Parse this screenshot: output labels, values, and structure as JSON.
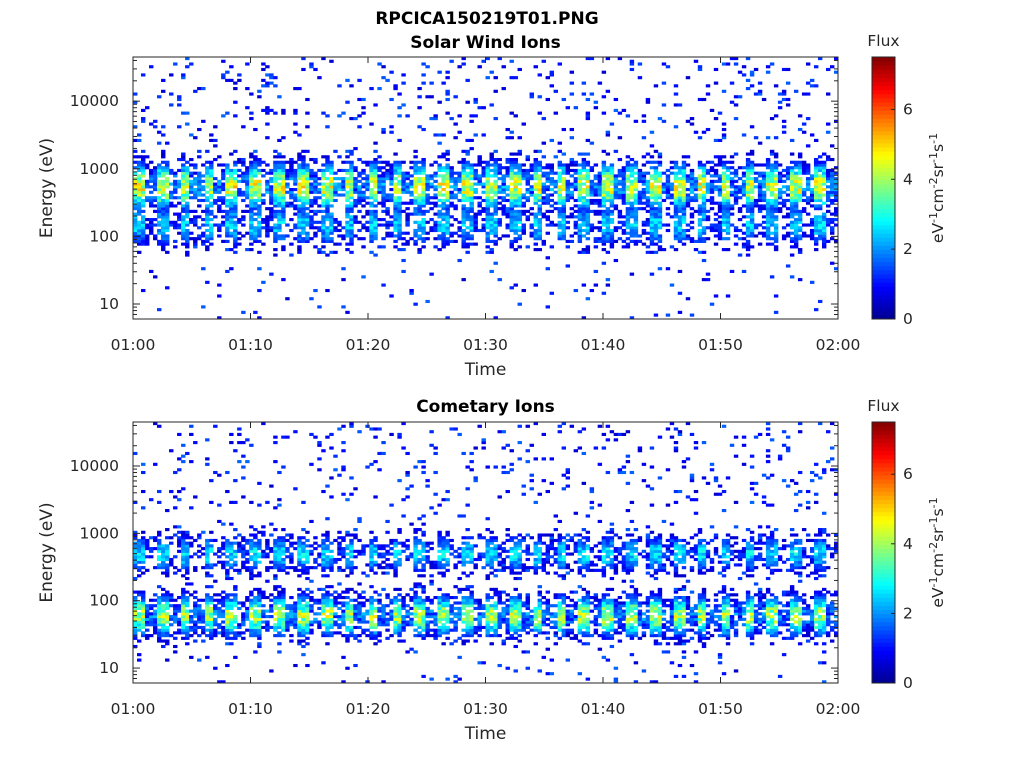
{
  "figure_title": "RPCICA150219T01.PNG",
  "colors": {
    "colormap": [
      "#00008f",
      "#0000ff",
      "#0080ff",
      "#00ffff",
      "#80ff80",
      "#ffff00",
      "#ff8000",
      "#ff0000",
      "#800000"
    ],
    "axis": "#262626"
  },
  "chart_data": [
    {
      "type": "heatmap",
      "title": "Solar Wind Ions",
      "xlabel": "Time",
      "ylabel": "Energy (eV)",
      "xlim": [
        "01:00",
        "02:00"
      ],
      "x_ticks": [
        "01:00",
        "01:10",
        "01:20",
        "01:30",
        "01:40",
        "01:50",
        "02:00"
      ],
      "ylim": [
        6,
        45000
      ],
      "y_scale": "log",
      "y_ticks": [
        10,
        100,
        1000,
        10000
      ],
      "y_tick_labels": [
        "10",
        "100",
        "1000",
        "10000"
      ],
      "colorbar": {
        "title": "Flux",
        "label": "eV-1cm-2sr-1s-1",
        "range": [
          0,
          7.5
        ],
        "ticks": [
          0,
          2,
          4,
          6
        ],
        "tick_labels": [
          "0",
          "2",
          "4",
          "6"
        ]
      },
      "profile": {
        "bands": [
          {
            "center_eV": 550,
            "peak": 4.3,
            "width": 0.32
          },
          {
            "center_eV": 150,
            "peak": 2.4,
            "width": 0.3
          }
        ],
        "active_cadence_min": 2,
        "seed": 17
      }
    },
    {
      "type": "heatmap",
      "title": "Cometary Ions",
      "xlabel": "Time",
      "ylabel": "Energy (eV)",
      "xlim": [
        "01:00",
        "02:00"
      ],
      "x_ticks": [
        "01:00",
        "01:10",
        "01:20",
        "01:30",
        "01:40",
        "01:50",
        "02:00"
      ],
      "ylim": [
        6,
        45000
      ],
      "y_scale": "log",
      "y_ticks": [
        10,
        100,
        1000,
        10000
      ],
      "y_tick_labels": [
        "10",
        "100",
        "1000",
        "10000"
      ],
      "colorbar": {
        "title": "Flux",
        "label": "eV-1cm-2sr-1s-1",
        "range": [
          0,
          7.5
        ],
        "ticks": [
          0,
          2,
          4,
          6
        ],
        "tick_labels": [
          "0",
          "2",
          "4",
          "6"
        ]
      },
      "profile": {
        "bands": [
          {
            "center_eV": 60,
            "peak": 4.0,
            "width": 0.28
          },
          {
            "center_eV": 500,
            "peak": 2.6,
            "width": 0.25
          }
        ],
        "active_cadence_min": 2,
        "seed": 53
      }
    }
  ]
}
